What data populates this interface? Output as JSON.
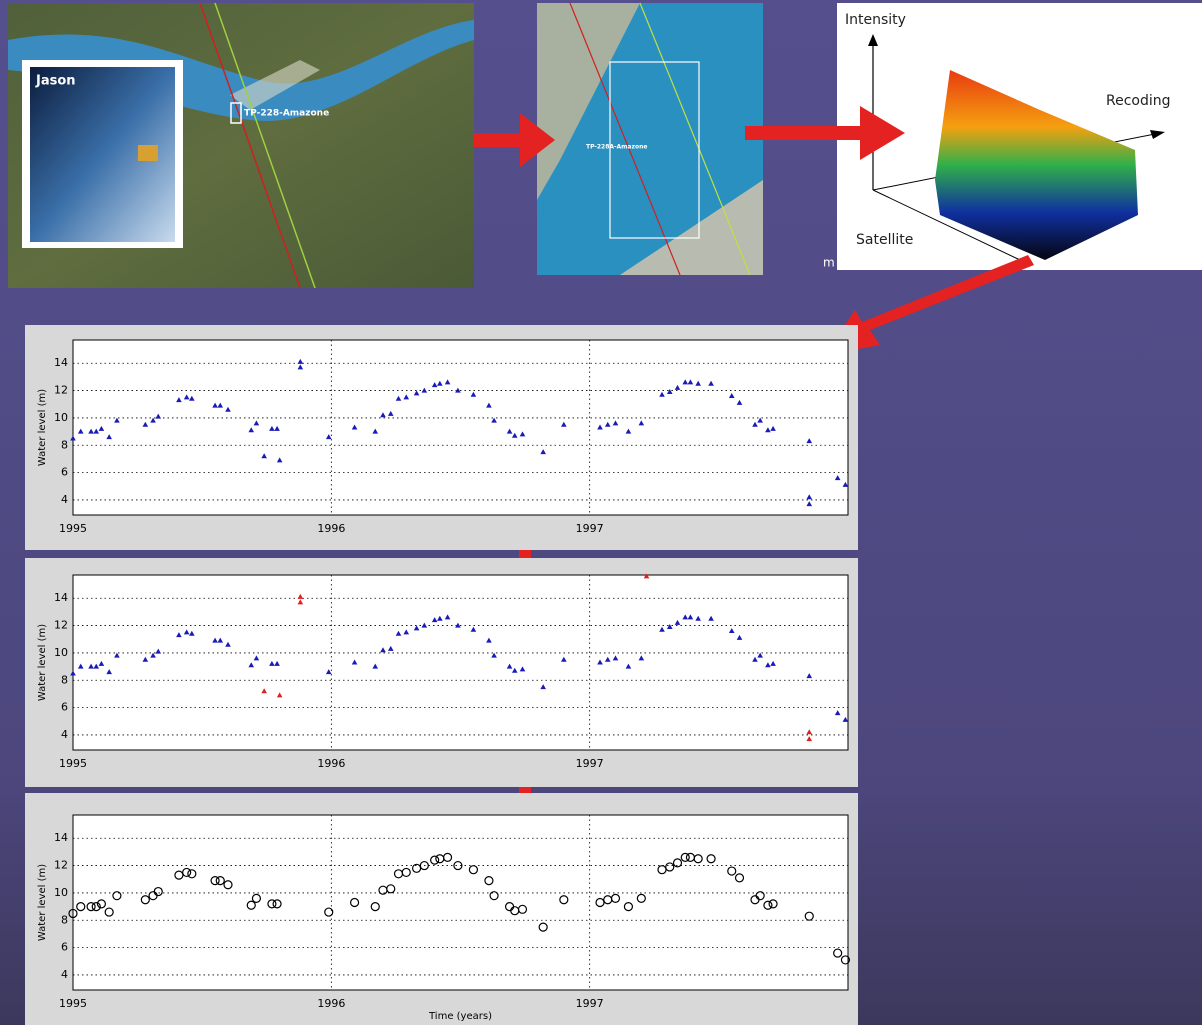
{
  "figures": {
    "inset_title": "Jason",
    "track_label_1": "TP-228-Amazone",
    "track_label_2": "TP-228A-Amazone",
    "axis_intensity": "Intensity",
    "axis_recoding": "Recoding",
    "axis_satellite": "Satellite",
    "cut_text": "m"
  },
  "chart_data": [
    {
      "type": "scatter",
      "ylabel": "Water level (m)",
      "xlim": [
        1995,
        1998
      ],
      "ylim": [
        2.9,
        15.7
      ],
      "xticks": [
        1995,
        1996,
        1997
      ],
      "yticks": [
        4,
        6,
        8,
        10,
        12,
        14
      ],
      "grid": true,
      "marker": "triangle",
      "series": [
        {
          "color": "#1a1ab8",
          "x": [
            1995.0,
            1995.03,
            1995.07,
            1995.09,
            1995.11,
            1995.14,
            1995.17,
            1995.28,
            1995.31,
            1995.33,
            1995.41,
            1995.44,
            1995.46,
            1995.55,
            1995.57,
            1995.6,
            1995.69,
            1995.71,
            1995.77,
            1995.79,
            1995.99,
            1996.09,
            1996.17,
            1996.2,
            1996.23,
            1996.26,
            1996.29,
            1996.33,
            1996.36,
            1996.4,
            1996.42,
            1996.45,
            1996.49,
            1996.55,
            1996.61,
            1996.63,
            1996.69,
            1996.71,
            1996.74,
            1996.82,
            1996.9,
            1997.04,
            1997.07,
            1997.1,
            1997.15,
            1997.2,
            1997.28,
            1997.31,
            1997.34,
            1997.37,
            1997.39,
            1997.42,
            1997.47,
            1997.55,
            1997.58,
            1997.64,
            1997.66,
            1997.69,
            1997.71,
            1997.85,
            1997.96,
            1997.99,
            1995.88,
            1995.88,
            1995.74,
            1995.8,
            1997.85,
            1997.85
          ],
          "values": [
            8.5,
            9.0,
            9.0,
            9.0,
            9.2,
            8.6,
            9.8,
            9.5,
            9.8,
            10.1,
            11.3,
            11.5,
            11.4,
            10.9,
            10.9,
            10.6,
            9.1,
            9.6,
            9.2,
            9.2,
            8.6,
            9.3,
            9.0,
            10.2,
            10.3,
            11.4,
            11.5,
            11.8,
            12.0,
            12.4,
            12.5,
            12.6,
            12.0,
            11.7,
            10.9,
            9.8,
            9.0,
            8.7,
            8.8,
            7.5,
            9.5,
            9.3,
            9.5,
            9.6,
            9.0,
            9.6,
            11.7,
            11.9,
            12.2,
            12.6,
            12.6,
            12.5,
            12.5,
            11.6,
            11.1,
            9.5,
            9.8,
            9.1,
            9.2,
            8.3,
            5.6,
            5.1,
            14.1,
            13.7,
            7.2,
            6.9,
            4.2,
            3.7
          ]
        }
      ]
    },
    {
      "type": "scatter",
      "ylabel": "Water level (m)",
      "xlim": [
        1995,
        1998
      ],
      "ylim": [
        2.9,
        15.7
      ],
      "xticks": [
        1995,
        1996,
        1997
      ],
      "yticks": [
        4,
        6,
        8,
        10,
        12,
        14
      ],
      "grid": true,
      "marker": "triangle",
      "series": [
        {
          "color": "#1a1ab8",
          "x": [
            1995.0,
            1995.03,
            1995.07,
            1995.09,
            1995.11,
            1995.14,
            1995.17,
            1995.28,
            1995.31,
            1995.33,
            1995.41,
            1995.44,
            1995.46,
            1995.55,
            1995.57,
            1995.6,
            1995.69,
            1995.71,
            1995.77,
            1995.79,
            1995.99,
            1996.09,
            1996.17,
            1996.2,
            1996.23,
            1996.26,
            1996.29,
            1996.33,
            1996.36,
            1996.4,
            1996.42,
            1996.45,
            1996.49,
            1996.55,
            1996.61,
            1996.63,
            1996.69,
            1996.71,
            1996.74,
            1996.82,
            1996.9,
            1997.04,
            1997.07,
            1997.1,
            1997.15,
            1997.2,
            1997.28,
            1997.31,
            1997.34,
            1997.37,
            1997.39,
            1997.42,
            1997.47,
            1997.55,
            1997.58,
            1997.64,
            1997.66,
            1997.69,
            1997.71,
            1997.85,
            1997.96,
            1997.99
          ],
          "values": [
            8.5,
            9.0,
            9.0,
            9.0,
            9.2,
            8.6,
            9.8,
            9.5,
            9.8,
            10.1,
            11.3,
            11.5,
            11.4,
            10.9,
            10.9,
            10.6,
            9.1,
            9.6,
            9.2,
            9.2,
            8.6,
            9.3,
            9.0,
            10.2,
            10.3,
            11.4,
            11.5,
            11.8,
            12.0,
            12.4,
            12.5,
            12.6,
            12.0,
            11.7,
            10.9,
            9.8,
            9.0,
            8.7,
            8.8,
            7.5,
            9.5,
            9.3,
            9.5,
            9.6,
            9.0,
            9.6,
            11.7,
            11.9,
            12.2,
            12.6,
            12.6,
            12.5,
            12.5,
            11.6,
            11.1,
            9.5,
            9.8,
            9.1,
            9.2,
            8.3,
            5.6,
            5.1
          ]
        },
        {
          "color": "#e02020",
          "x": [
            1995.88,
            1995.88,
            1995.74,
            1995.8,
            1997.85,
            1997.85,
            1997.22
          ],
          "values": [
            14.1,
            13.7,
            7.2,
            6.9,
            4.2,
            3.7,
            15.6
          ]
        }
      ]
    },
    {
      "type": "scatter",
      "ylabel": "Water level (m)",
      "xlabel": "Time (years)",
      "xlim": [
        1995,
        1998
      ],
      "ylim": [
        2.9,
        15.7
      ],
      "xticks": [
        1995,
        1996,
        1997
      ],
      "yticks": [
        4,
        6,
        8,
        10,
        12,
        14
      ],
      "grid": true,
      "marker": "circle",
      "series": [
        {
          "color": "#000000",
          "x": [
            1995.0,
            1995.03,
            1995.07,
            1995.09,
            1995.11,
            1995.14,
            1995.17,
            1995.28,
            1995.31,
            1995.33,
            1995.41,
            1995.44,
            1995.46,
            1995.55,
            1995.57,
            1995.6,
            1995.69,
            1995.71,
            1995.77,
            1995.79,
            1995.99,
            1996.09,
            1996.17,
            1996.2,
            1996.23,
            1996.26,
            1996.29,
            1996.33,
            1996.36,
            1996.4,
            1996.42,
            1996.45,
            1996.49,
            1996.55,
            1996.61,
            1996.63,
            1996.69,
            1996.71,
            1996.74,
            1996.82,
            1996.9,
            1997.04,
            1997.07,
            1997.1,
            1997.15,
            1997.2,
            1997.28,
            1997.31,
            1997.34,
            1997.37,
            1997.39,
            1997.42,
            1997.47,
            1997.55,
            1997.58,
            1997.64,
            1997.66,
            1997.69,
            1997.71,
            1997.85,
            1997.96,
            1997.99
          ],
          "values": [
            8.5,
            9.0,
            9.0,
            9.0,
            9.2,
            8.6,
            9.8,
            9.5,
            9.8,
            10.1,
            11.3,
            11.5,
            11.4,
            10.9,
            10.9,
            10.6,
            9.1,
            9.6,
            9.2,
            9.2,
            8.6,
            9.3,
            9.0,
            10.2,
            10.3,
            11.4,
            11.5,
            11.8,
            12.0,
            12.4,
            12.5,
            12.6,
            12.0,
            11.7,
            10.9,
            9.8,
            9.0,
            8.7,
            8.8,
            7.5,
            9.5,
            9.3,
            9.5,
            9.6,
            9.0,
            9.6,
            11.7,
            11.9,
            12.2,
            12.6,
            12.6,
            12.5,
            12.5,
            11.6,
            11.1,
            9.5,
            9.8,
            9.1,
            9.2,
            8.3,
            5.6,
            5.1
          ]
        }
      ]
    }
  ]
}
